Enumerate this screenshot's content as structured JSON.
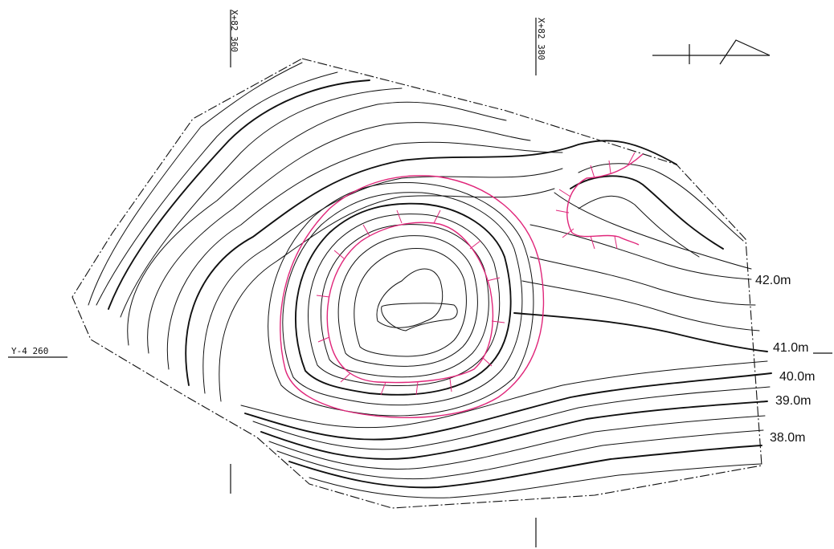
{
  "grid_labels": {
    "x_left": "X+82 360",
    "x_right": "X+82 380",
    "y_left": "Y-4 260"
  },
  "elevation_labels": [
    "42.0m",
    "41.0m",
    "40.0m",
    "39.0m",
    "38.0m"
  ],
  "colors": {
    "contour": "#111111",
    "feature_outline": "#e0267a",
    "background": "#ffffff"
  },
  "icons": {
    "north_arrow": "north-arrow-icon"
  }
}
